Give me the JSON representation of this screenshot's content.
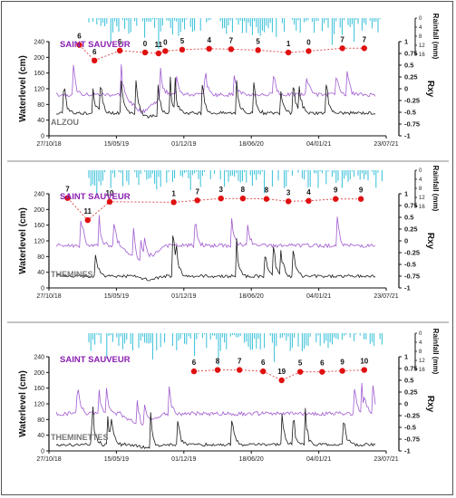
{
  "reference_label": "SAINT SAUVEUR",
  "left_axis_label": "Waterlevel (cm)",
  "right_axis_label": "Rxy",
  "rain_axis_label": "Rainfall (mm)",
  "colors": {
    "rain": "#33bfd8",
    "reference": "#a15ccf",
    "station": "#1a1a1a",
    "rxy_line": "#e05050",
    "rxy_point": "#e01010",
    "reference_text": "#8a1fb0"
  },
  "chart_data": [
    {
      "type": "line",
      "station": "ALZOU",
      "x_ticks": [
        "27/10/18",
        "15/05/19",
        "01/12/19",
        "18/06/20",
        "04/01/21",
        "23/07/21"
      ],
      "y_left_ticks": [
        0,
        40,
        80,
        120,
        160,
        200,
        240
      ],
      "ylim_left": [
        0,
        240
      ],
      "y_right_ticks": [
        "1",
        "0.75",
        "0.5",
        "0.25",
        "0",
        "-0.25",
        "-0.5",
        "-0.75",
        "-1"
      ],
      "ylim_right": [
        -1,
        1
      ],
      "rain_ticks": [
        0,
        4,
        8,
        12,
        16
      ],
      "rain_lim": [
        0,
        16
      ],
      "rxy_points": [
        {
          "lag": "6",
          "x": 0.09,
          "rxy": 0.93
        },
        {
          "lag": "6",
          "x": 0.135,
          "rxy": 0.6
        },
        {
          "lag": "6",
          "x": 0.21,
          "rxy": 0.81
        },
        {
          "lag": "0",
          "x": 0.285,
          "rxy": 0.77
        },
        {
          "lag": "11",
          "x": 0.325,
          "rxy": 0.75
        },
        {
          "lag": "0",
          "x": 0.345,
          "rxy": 0.8
        },
        {
          "lag": "5",
          "x": 0.395,
          "rxy": 0.83
        },
        {
          "lag": "4",
          "x": 0.475,
          "rxy": 0.85
        },
        {
          "lag": "7",
          "x": 0.54,
          "rxy": 0.84
        },
        {
          "lag": "5",
          "x": 0.62,
          "rxy": 0.82
        },
        {
          "lag": "1",
          "x": 0.71,
          "rxy": 0.77
        },
        {
          "lag": "0",
          "x": 0.77,
          "rxy": 0.8
        },
        {
          "lag": "7",
          "x": 0.87,
          "rxy": 0.86
        },
        {
          "lag": "7",
          "x": 0.935,
          "rxy": 0.86
        }
      ]
    },
    {
      "type": "line",
      "station": "THEMINES",
      "x_ticks": [
        "27/10/18",
        "15/05/19",
        "01/12/19",
        "18/06/20",
        "04/01/21",
        "23/07/21"
      ],
      "y_left_ticks": [
        0,
        40,
        80,
        120,
        160,
        200,
        240
      ],
      "ylim_left": [
        0,
        240
      ],
      "y_right_ticks": [
        "1",
        "0.75",
        "0.5",
        "0.25",
        "0",
        "-0.25",
        "-0.5",
        "-0.75",
        "-1"
      ],
      "ylim_right": [
        -1,
        1
      ],
      "rain_ticks": [
        0,
        4,
        8,
        12,
        16
      ],
      "rain_lim": [
        0,
        16
      ],
      "rxy_points": [
        {
          "lag": "7",
          "x": 0.055,
          "rxy": 0.91
        },
        {
          "lag": "11",
          "x": 0.115,
          "rxy": 0.44
        },
        {
          "lag": "10",
          "x": 0.18,
          "rxy": 0.83
        },
        {
          "lag": "1",
          "x": 0.37,
          "rxy": 0.82
        },
        {
          "lag": "7",
          "x": 0.44,
          "rxy": 0.86
        },
        {
          "lag": "3",
          "x": 0.51,
          "rxy": 0.9
        },
        {
          "lag": "8",
          "x": 0.575,
          "rxy": 0.9
        },
        {
          "lag": "8",
          "x": 0.645,
          "rxy": 0.89
        },
        {
          "lag": "3",
          "x": 0.71,
          "rxy": 0.84
        },
        {
          "lag": "4",
          "x": 0.77,
          "rxy": 0.85
        },
        {
          "lag": "9",
          "x": 0.85,
          "rxy": 0.89
        },
        {
          "lag": "9",
          "x": 0.925,
          "rxy": 0.89
        }
      ]
    },
    {
      "type": "line",
      "station": "THEMINETTES",
      "x_ticks": [
        "27/10/18",
        "15/05/19",
        "01/12/19",
        "18/06/20",
        "04/01/21",
        "23/07/21"
      ],
      "y_left_ticks": [
        0,
        40,
        80,
        120,
        160,
        200,
        240
      ],
      "ylim_left": [
        0,
        240
      ],
      "y_right_ticks": [
        "1",
        "0.75",
        "0.5",
        "0.25",
        "0",
        "-0.25",
        "-0.5",
        "-0.75",
        "-1"
      ],
      "ylim_right": [
        -1,
        1
      ],
      "rain_ticks": [
        0,
        4,
        8,
        12,
        16
      ],
      "rain_lim": [
        0,
        16
      ],
      "rxy_points": [
        {
          "lag": "6",
          "x": 0.43,
          "rxy": 0.69
        },
        {
          "lag": "8",
          "x": 0.5,
          "rxy": 0.72
        },
        {
          "lag": "7",
          "x": 0.565,
          "rxy": 0.72
        },
        {
          "lag": "6",
          "x": 0.635,
          "rxy": 0.69
        },
        {
          "lag": "19",
          "x": 0.69,
          "rxy": 0.5
        },
        {
          "lag": "5",
          "x": 0.745,
          "rxy": 0.68
        },
        {
          "lag": "6",
          "x": 0.81,
          "rxy": 0.68
        },
        {
          "lag": "9",
          "x": 0.87,
          "rxy": 0.7
        },
        {
          "lag": "10",
          "x": 0.935,
          "rxy": 0.72
        }
      ]
    }
  ]
}
